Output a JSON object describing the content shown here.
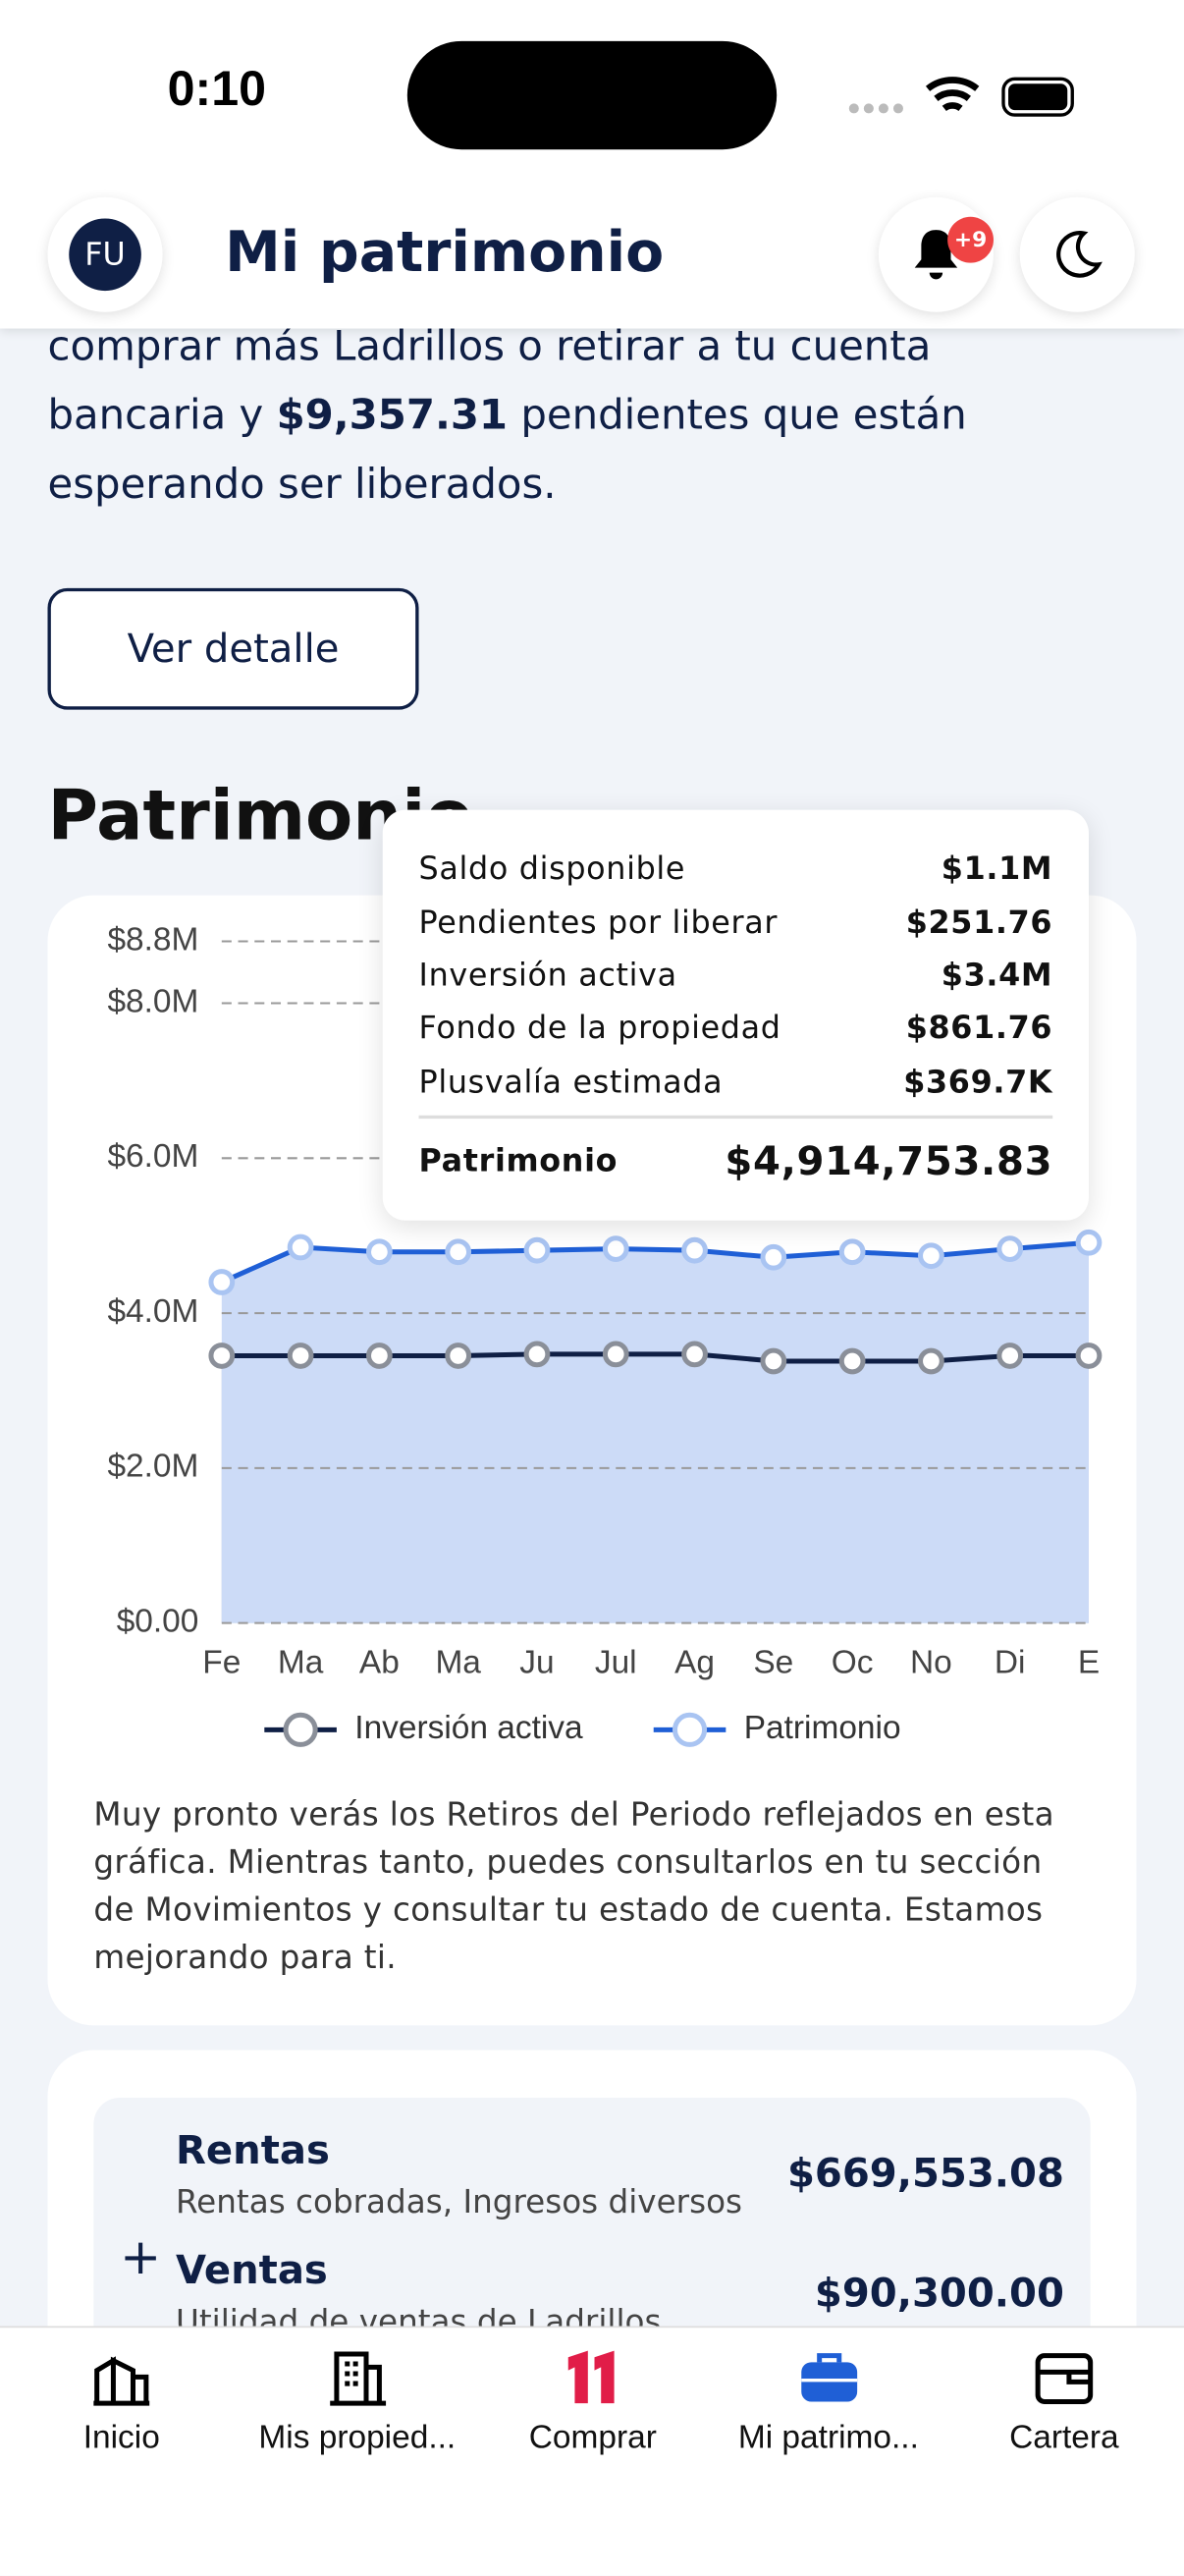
{
  "status_bar": {
    "time": "0:10"
  },
  "header": {
    "avatar": "FU",
    "title": "Mi patrimonio",
    "badge": "+9"
  },
  "intro": {
    "before": "comprar más Ladrillos o retirar a tu cuenta bancaria y ",
    "amount": "$9,357.31",
    "after": " pendientes que están esperando ser liberados."
  },
  "detail_button": "Ver detalle",
  "section_title": "Patrimonio",
  "chart_data": {
    "type": "area",
    "categories": [
      "Fe",
      "Ma",
      "Ab",
      "Ma",
      "Ju",
      "Jul",
      "Ag",
      "Se",
      "Oc",
      "No",
      "Di",
      "E"
    ],
    "series": [
      {
        "name": "Inversión activa",
        "color": "#0f1f45",
        "area_color": "#a4b2d2",
        "marker_color": "#8a8f99",
        "values": [
          3450000,
          3450000,
          3450000,
          3450000,
          3470000,
          3470000,
          3470000,
          3380000,
          3380000,
          3380000,
          3450000,
          3450000
        ]
      },
      {
        "name": "Patrimonio",
        "color": "#1f5fd6",
        "area_color": "#ccdbf7",
        "marker_color": "#a9c4f2",
        "values": [
          4400000,
          4850000,
          4790000,
          4790000,
          4810000,
          4830000,
          4810000,
          4720000,
          4790000,
          4740000,
          4830000,
          4910000
        ]
      }
    ],
    "ylim": [
      0,
      8800000
    ],
    "yticks": [
      {
        "value": 0,
        "label": "$0.00"
      },
      {
        "value": 2000000,
        "label": "$2.0M"
      },
      {
        "value": 4000000,
        "label": "$4.0M"
      },
      {
        "value": 6000000,
        "label": "$6.0M"
      },
      {
        "value": 8000000,
        "label": "$8.0M"
      },
      {
        "value": 8800000,
        "label": "$8.8M"
      }
    ],
    "grid": true
  },
  "tooltip": {
    "rows": [
      {
        "label": "Saldo disponible",
        "value": "$1.1M"
      },
      {
        "label": "Pendientes por liberar",
        "value": "$251.76"
      },
      {
        "label": "Inversión activa",
        "value": "$3.4M"
      },
      {
        "label": "Fondo de la propiedad",
        "value": "$861.76"
      },
      {
        "label": "Plusvalía estimada",
        "value": "$369.7K"
      }
    ],
    "total": {
      "label": "Patrimonio",
      "value": "$4,914,753.83"
    }
  },
  "note": "Muy pronto verás los Retiros del Periodo reflejados en esta gráfica. Mientras tanto, puedes consultarlos en tu sección de Movimientos y consultar tu estado de cuenta. Estamos mejorando para ti.",
  "summary": [
    {
      "title": "Rentas",
      "subtitle": "Rentas cobradas, Ingresos diversos",
      "amount": "$669,553.08"
    },
    {
      "title": "Ventas",
      "subtitle": "Utilidad de ventas de Ladrillos",
      "amount": "$90,300.00"
    }
  ],
  "nav": [
    "Inicio",
    "Mis propied...",
    "Comprar",
    "Mi patrimo...",
    "Cartera"
  ]
}
